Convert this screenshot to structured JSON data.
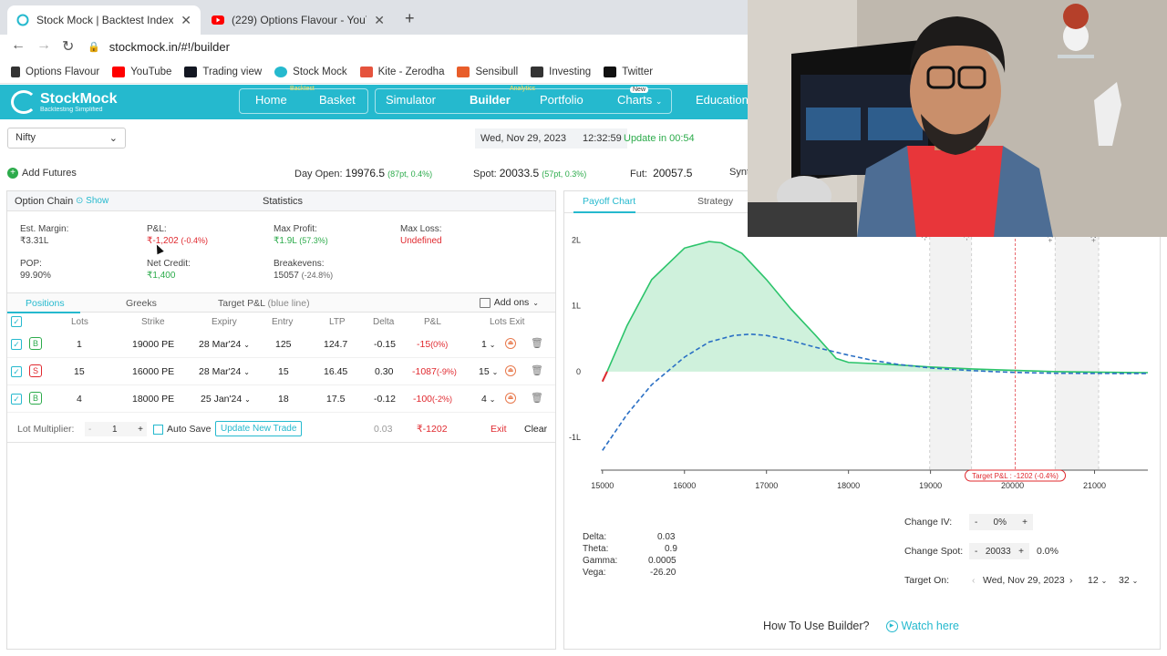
{
  "browser": {
    "tabs": [
      {
        "title": "Stock Mock | Backtest Index St",
        "active": true
      },
      {
        "title": "(229) Options Flavour - YouTu",
        "active": false
      }
    ],
    "url": "stockmock.in/#!/builder",
    "bookmarks": [
      {
        "label": "Options Flavour",
        "color": "#333333"
      },
      {
        "label": "YouTube",
        "color": "#ff0000"
      },
      {
        "label": "Trading view",
        "color": "#131722"
      },
      {
        "label": "Stock Mock",
        "color": "#25b9ce"
      },
      {
        "label": "Kite - Zerodha",
        "color": "#e5533d"
      },
      {
        "label": "Sensibull",
        "color": "#e85d2a"
      },
      {
        "label": "Investing",
        "color": "#333333"
      },
      {
        "label": "Twitter",
        "color": "#111111"
      }
    ]
  },
  "app": {
    "logo_name": "StockMock",
    "logo_tag": "Backtesting Simplified",
    "nav": {
      "home": "Home",
      "basket": "Basket",
      "basket_badge": "Backtest",
      "simulator": "Simulator",
      "builder": "Builder",
      "portfolio": "Portfolio",
      "analytics_badge": "Analytics",
      "charts": "Charts",
      "charts_badge": "New",
      "education": "Education"
    }
  },
  "toolbar": {
    "symbol": "Nifty",
    "date": "Wed, Nov 29, 2023",
    "time": "12:32:59",
    "update": "Update in 00:54",
    "add_futures": "Add Futures",
    "day_open_label": "Day Open:",
    "day_open": "19976.5",
    "day_open_chg": "(87pt, 0.4%)",
    "spot_label": "Spot:",
    "spot": "20033.5",
    "spot_chg": "(57pt, 0.3%)",
    "fut_label": "Fut:",
    "fut": "20057.5",
    "synth_label": "Synt"
  },
  "stats": {
    "option_chain": "Option Chain",
    "show": "Show",
    "title": "Statistics",
    "est_margin_label": "Est. Margin:",
    "est_margin": "₹3.31L",
    "pnl_label": "P&L:",
    "pnl": "₹-1,202",
    "pnl_pct": "(-0.4%)",
    "max_profit_label": "Max Profit:",
    "max_profit": "₹1.9L",
    "max_profit_pct": "(57.3%)",
    "max_loss_label": "Max Loss:",
    "max_loss": "Undefined",
    "pop_label": "POP:",
    "pop": "99.90%",
    "net_credit_label": "Net Credit:",
    "net_credit": "₹1,400",
    "breakevens_label": "Breakevens:",
    "breakevens": "15057",
    "breakevens_pct": "(-24.8%)"
  },
  "positions": {
    "tabs": {
      "positions": "Positions",
      "greeks": "Greeks",
      "target": "Target P&L",
      "target_note": "(blue line)",
      "addons": "Add ons"
    },
    "headers": {
      "lots": "Lots",
      "strike": "Strike",
      "expiry": "Expiry",
      "entry": "Entry",
      "ltp": "LTP",
      "delta": "Delta",
      "pnl": "P&L",
      "lots_exit": "Lots Exit"
    },
    "rows": [
      {
        "side": "B",
        "lots": "1",
        "strike": "19000 PE",
        "expiry": "28 Mar'24",
        "entry": "125",
        "ltp": "124.7",
        "delta": "-0.15",
        "pnl": "-15",
        "pnl_pct": "(0%)",
        "exit_lots": "1"
      },
      {
        "side": "S",
        "lots": "15",
        "strike": "16000 PE",
        "expiry": "28 Mar'24",
        "entry": "15",
        "ltp": "16.45",
        "delta": "0.30",
        "pnl": "-1087",
        "pnl_pct": "(-9%)",
        "exit_lots": "15"
      },
      {
        "side": "B",
        "lots": "4",
        "strike": "18000 PE",
        "expiry": "25 Jan'24",
        "entry": "18",
        "ltp": "17.5",
        "delta": "-0.12",
        "pnl": "-100",
        "pnl_pct": "(-2%)",
        "exit_lots": "4"
      }
    ],
    "footer": {
      "lot_multiplier": "Lot Multiplier:",
      "minus": "-",
      "mult": "1",
      "plus": "+",
      "auto_save": "Auto Save",
      "update_btn": "Update New Trade",
      "total_delta": "0.03",
      "total_pnl": "₹-1202",
      "exit": "Exit",
      "clear": "Clear"
    }
  },
  "payoff": {
    "tabs": {
      "payoff": "Payoff Chart",
      "strategy": "Strategy"
    },
    "greeks": {
      "delta_label": "Delta:",
      "delta": "0.03",
      "theta_label": "Theta:",
      "theta": "0.9",
      "gamma_label": "Gamma:",
      "gamma": "0.0005",
      "vega_label": "Vega:",
      "vega": "-26.20"
    },
    "controls": {
      "iv_label": "Change IV:",
      "iv": "0%",
      "spot_label": "Change Spot:",
      "spot": "20033",
      "spot_pct": "0.0%",
      "target_label": "Target On:",
      "target_date": "Wed, Nov 29, 2023",
      "target_hour": "12",
      "target_min": "32"
    },
    "howto": "How To Use Builder?",
    "watch": "Watch here"
  },
  "chart_data": {
    "type": "line",
    "xlim": [
      14980,
      21650
    ],
    "ylim": [
      -150000,
      230000
    ],
    "x_ticks": [
      "15000",
      "16000",
      "17000",
      "18000",
      "19000",
      "20000",
      "21000"
    ],
    "y_ticks": [
      {
        "label": "2L",
        "v": 200000
      },
      {
        "label": "1L",
        "v": 100000
      },
      {
        "label": "0",
        "v": 0
      },
      {
        "label": "-1L",
        "v": -100000
      }
    ],
    "sd_lines": [
      {
        "label": "-2σ",
        "x": 18990
      },
      {
        "label": "-1σ",
        "x": 19500
      },
      {
        "label": "+1σ",
        "x": 20520
      },
      {
        "label": "+2σ",
        "x": 21050
      }
    ],
    "spot_marker": {
      "x": 20033,
      "label": "Target P&L : -1202 (-0.4%)"
    },
    "series": [
      {
        "kind": "expiry",
        "color": "#2cc46b",
        "x": [
          15000,
          15057,
          15300,
          15600,
          16000,
          16300,
          16450,
          16700,
          17000,
          17300,
          17600,
          17850,
          18000,
          18500,
          19000,
          19500,
          20000,
          20500,
          21000,
          21500,
          21650
        ],
        "y": [
          -15000,
          0,
          70000,
          140000,
          188000,
          198000,
          196000,
          180000,
          140000,
          95000,
          55000,
          20000,
          14000,
          11000,
          7000,
          4000,
          2000,
          0,
          -800,
          -1500,
          -1600
        ]
      },
      {
        "kind": "target",
        "color": "#2a6fc4",
        "x": [
          15000,
          15300,
          15600,
          16000,
          16300,
          16600,
          16800,
          17000,
          17300,
          17600,
          18000,
          18300,
          18600,
          19000,
          19500,
          20000,
          20500,
          21000,
          21500,
          21650
        ],
        "y": [
          -120000,
          -65000,
          -20000,
          22000,
          45000,
          55000,
          57000,
          55000,
          47000,
          37000,
          25000,
          17000,
          11000,
          5500,
          1500,
          -1202,
          -2500,
          -2800,
          -2900,
          -2900
        ]
      }
    ]
  }
}
